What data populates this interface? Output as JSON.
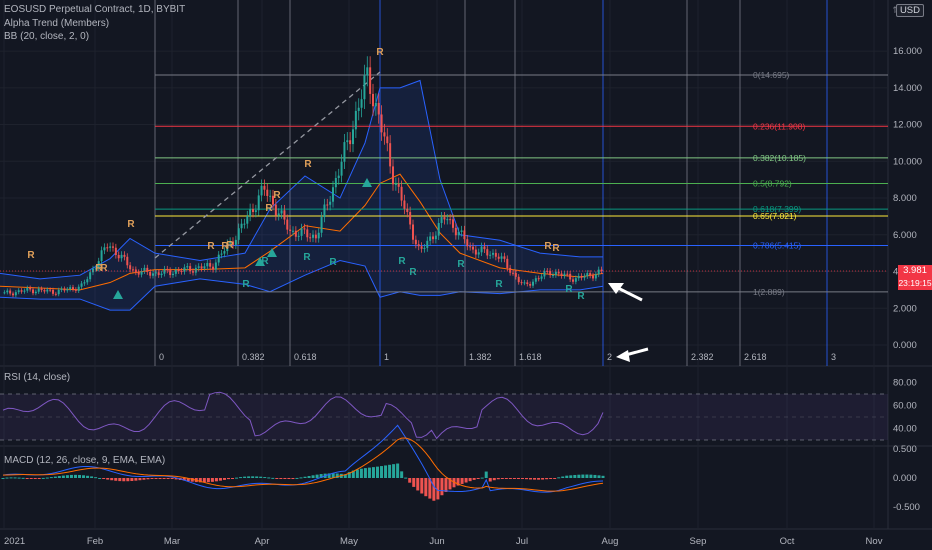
{
  "header": {
    "symbol_line": "EOSUSD Perpetual Contract, 1D, BYBIT",
    "indicator_1": "Alpha Trend (Members)",
    "indicator_2": "BB (20, close, 2, 0)"
  },
  "price_scale": {
    "currency_button": "USD",
    "ticks": [
      "16.000",
      "14.000",
      "12.000",
      "10.000",
      "8.000",
      "6.000",
      "4.000",
      "2.000",
      "0.000"
    ],
    "tick_values": [
      16,
      14,
      12,
      10,
      8,
      6,
      4,
      2,
      0
    ],
    "last_price": "3.981",
    "countdown": "23:19:15",
    "last_price_color": "#f23645"
  },
  "fib_retracement": [
    {
      "label": "0(14.695)",
      "value": 14.695,
      "color": "#787b86"
    },
    {
      "label": "0.236(11.908)",
      "value": 11.908,
      "color": "#f23645"
    },
    {
      "label": "0.382(10.185)",
      "value": 10.185,
      "color": "#81c784"
    },
    {
      "label": "0.5(8.792)",
      "value": 8.792,
      "color": "#4caf50"
    },
    {
      "label": "0.618(7.399)",
      "value": 7.399,
      "color": "#089981"
    },
    {
      "label": "0.65(7.021)",
      "value": 7.021,
      "color": "#ffeb3b"
    },
    {
      "label": "0.786(5.415)",
      "value": 5.415,
      "color": "#2962ff"
    },
    {
      "label": "1(2.889)",
      "value": 2.889,
      "color": "#787b86"
    }
  ],
  "fib_time_zones": [
    "0",
    "0.382",
    "0.618",
    "1",
    "1.382",
    "1.618",
    "2",
    "2.382",
    "2.618",
    "3"
  ],
  "rsi": {
    "title": "RSI (14, close)",
    "ticks": [
      "80.00",
      "60.00",
      "40.00"
    ],
    "tick_values": [
      80,
      60,
      40
    ],
    "upper": 70,
    "lower": 30
  },
  "macd": {
    "title": "MACD (12, 26, close, 9, EMA, EMA)",
    "ticks": [
      "0.500",
      "0.000",
      "-0.500"
    ],
    "tick_values": [
      0.5,
      0,
      -0.5
    ]
  },
  "time_axis": {
    "labels": [
      "2021",
      "Feb",
      "Mar",
      "Apr",
      "May",
      "Jun",
      "Jul",
      "Aug",
      "Sep",
      "Oct",
      "Nov"
    ]
  },
  "colors": {
    "background": "#131722",
    "up": "#26a69a",
    "down": "#ef5350",
    "bb_band": "#2962ff",
    "bb_basis": "#ff6d00",
    "rsi_line": "#7e57c2",
    "macd_line": "#2962ff",
    "signal_line": "#ff6d00",
    "marker_r_sell": "#e0a05a",
    "marker_r_buy": "#26a69a",
    "trend_triangle": "#26a69a",
    "arrow": "#ffffff"
  },
  "icons": {
    "compare": "compare-icon",
    "arrow_current_price": "arrow-icon",
    "arrow_time_zone": "arrow-icon"
  },
  "chart_data": {
    "type": "candlestick",
    "title": "EOSUSD Perpetual Contract, 1D, BYBIT",
    "series": [
      {
        "name": "EOSUSD",
        "approx_close": [
          2.8,
          3.0,
          2.9,
          3.2,
          5.5,
          4.0,
          3.9,
          4.1,
          4.3,
          6.1,
          8.5,
          6.2,
          5.9,
          10.0,
          14.7,
          9.1,
          5.0,
          7.0,
          5.2,
          4.9,
          3.2,
          4.0,
          3.6,
          3.98
        ]
      },
      {
        "name": "BB (20, close, 2, 0)"
      }
    ]
  }
}
